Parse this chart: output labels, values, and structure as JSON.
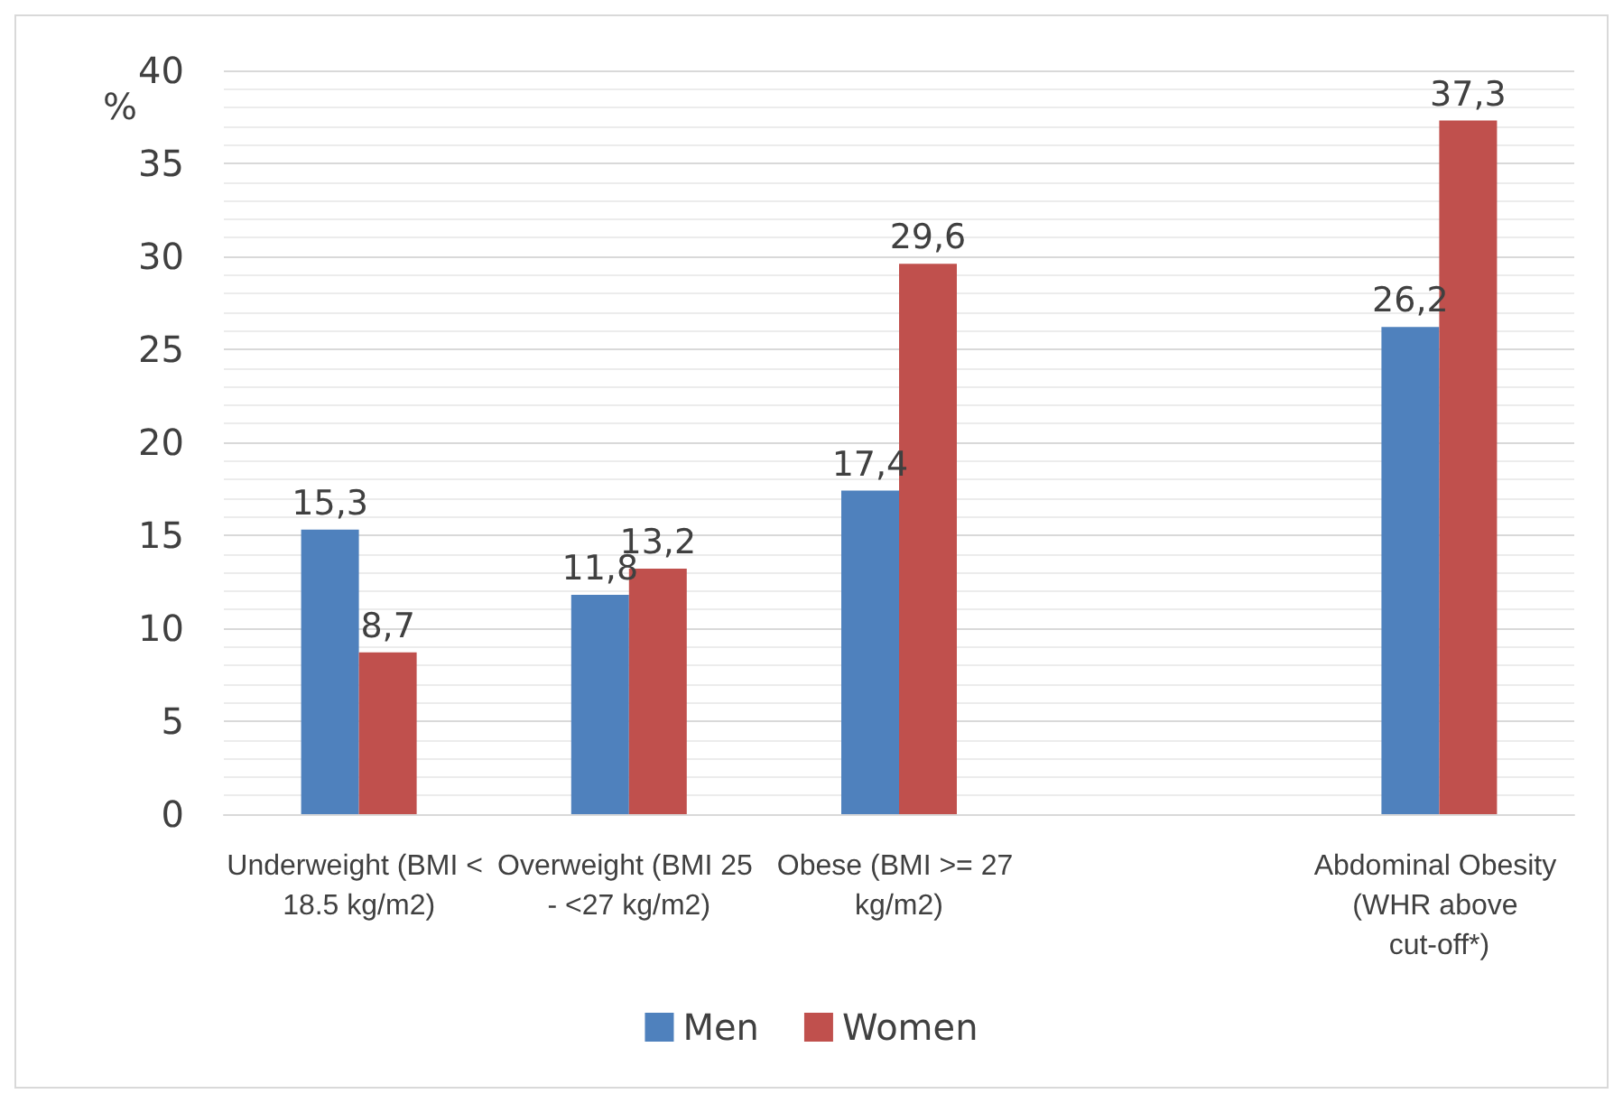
{
  "chart_data": {
    "type": "bar",
    "ylabel": "%",
    "categories": [
      "Underweight (BMI < 18.5 kg/m2)",
      "Overweight (BMI 25 - <27 kg/m2)",
      "Obese (BMI >= 27 kg/m2)",
      null,
      "Abdominal Obesity (WHR above cut-off*)"
    ],
    "series": [
      {
        "name": "Men",
        "color": "#4f81bd",
        "values": [
          15.3,
          11.8,
          17.4,
          null,
          26.2
        ]
      },
      {
        "name": "Women",
        "color": "#c0504d",
        "values": [
          8.7,
          13.2,
          29.6,
          null,
          37.3
        ]
      }
    ],
    "value_labels": [
      [
        "15,3",
        "11,8",
        "17,4",
        null,
        "26,2"
      ],
      [
        "8,7",
        "13,2",
        "29,6",
        null,
        "37,3"
      ]
    ],
    "ylim": [
      0,
      40
    ],
    "yticks": [
      0,
      5,
      10,
      15,
      20,
      25,
      30,
      35,
      40
    ],
    "grid": true,
    "legend": "bottom"
  }
}
